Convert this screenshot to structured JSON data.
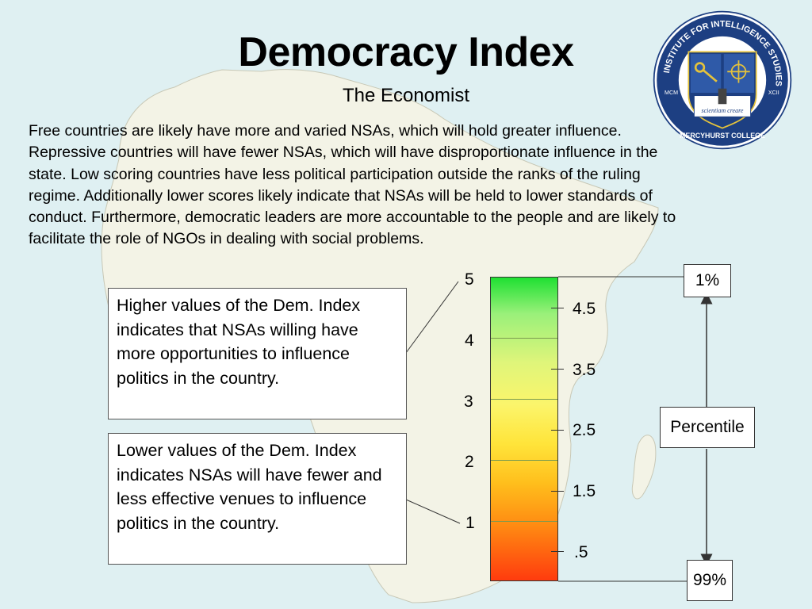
{
  "header": {
    "title": "Democracy Index",
    "subtitle": "The Economist"
  },
  "intro": "Free countries are likely have more and varied NSAs, which will hold greater influence. Repressive countries will have fewer NSAs, which will have disproportionate influence in the state.  Low scoring countries have less political participation outside the ranks of the ruling regime.  Additionally lower scores likely indicate that NSAs will be held to lower standards of conduct.  Furthermore, democratic leaders are more accountable to the people and are likely to facilitate the role of NGOs in dealing with social problems.",
  "seal": {
    "ring_text": "INSTITUTE FOR INTELLIGENCE STUDIES",
    "bottom_text": "MERCYHURST COLLEGE",
    "left_text": "MCM",
    "right_text": "XCII",
    "motto": "scientiam creare",
    "colors": {
      "ring": "#1d3f82",
      "gold": "#e4c23c"
    }
  },
  "callouts": {
    "high": "Higher values of the Dem. Index indicates that NSAs willing have more opportunities to influence politics in the country.",
    "low": "Lower values of the Dem. Index indicates NSAs will have fewer and less effective venues to influence politics in the country."
  },
  "scale": {
    "major_labels": [
      "5",
      "4",
      "3",
      "2",
      "1"
    ],
    "minor_labels": [
      "4.5",
      "3.5",
      "2.5",
      "1.5",
      ".5"
    ],
    "gradient_colors": [
      "#1fe032",
      "#fbf56b",
      "#ff3b0e"
    ]
  },
  "percentile": {
    "top": "1%",
    "label": "Percentile",
    "bottom": "99%"
  }
}
